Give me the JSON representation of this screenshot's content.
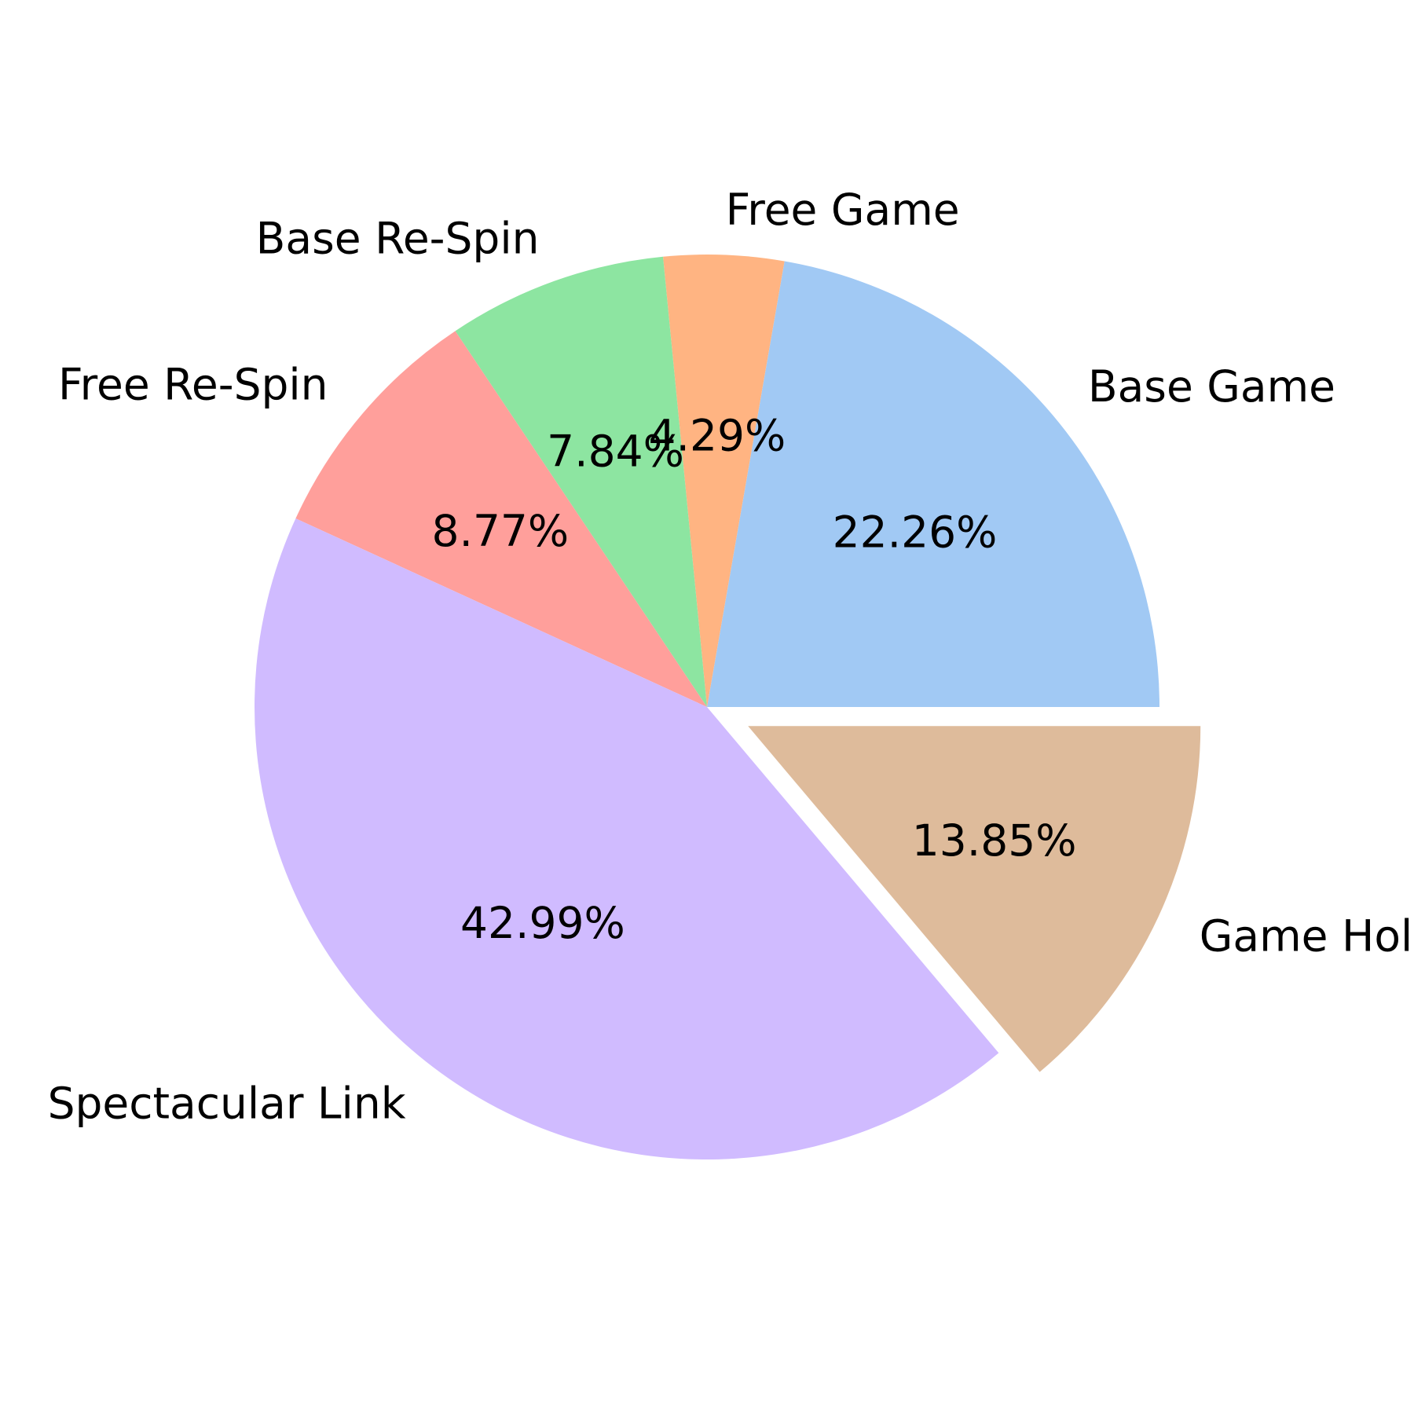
{
  "chart_data": {
    "type": "pie",
    "start_angle_deg": 0,
    "direction": "counterclockwise",
    "slices": [
      {
        "label": "Base Game",
        "value": 22.26,
        "pct_label": "22.26%",
        "color": "#a1c9f4",
        "explode": 0
      },
      {
        "label": "Free Game",
        "value": 4.29,
        "pct_label": "4.29%",
        "color": "#ffb482",
        "explode": 0
      },
      {
        "label": "Base Re-Spin",
        "value": 7.84,
        "pct_label": "7.84%",
        "color": "#8de5a1",
        "explode": 0
      },
      {
        "label": "Free Re-Spin",
        "value": 8.77,
        "pct_label": "8.77%",
        "color": "#ff9f9b",
        "explode": 0
      },
      {
        "label": "Spectacular Link",
        "value": 42.99,
        "pct_label": "42.99%",
        "color": "#d0bbff",
        "explode": 0
      },
      {
        "label": "Game Hold",
        "value": 13.85,
        "pct_label": "13.85%",
        "color": "#debb9b",
        "explode": 0.1
      }
    ]
  }
}
